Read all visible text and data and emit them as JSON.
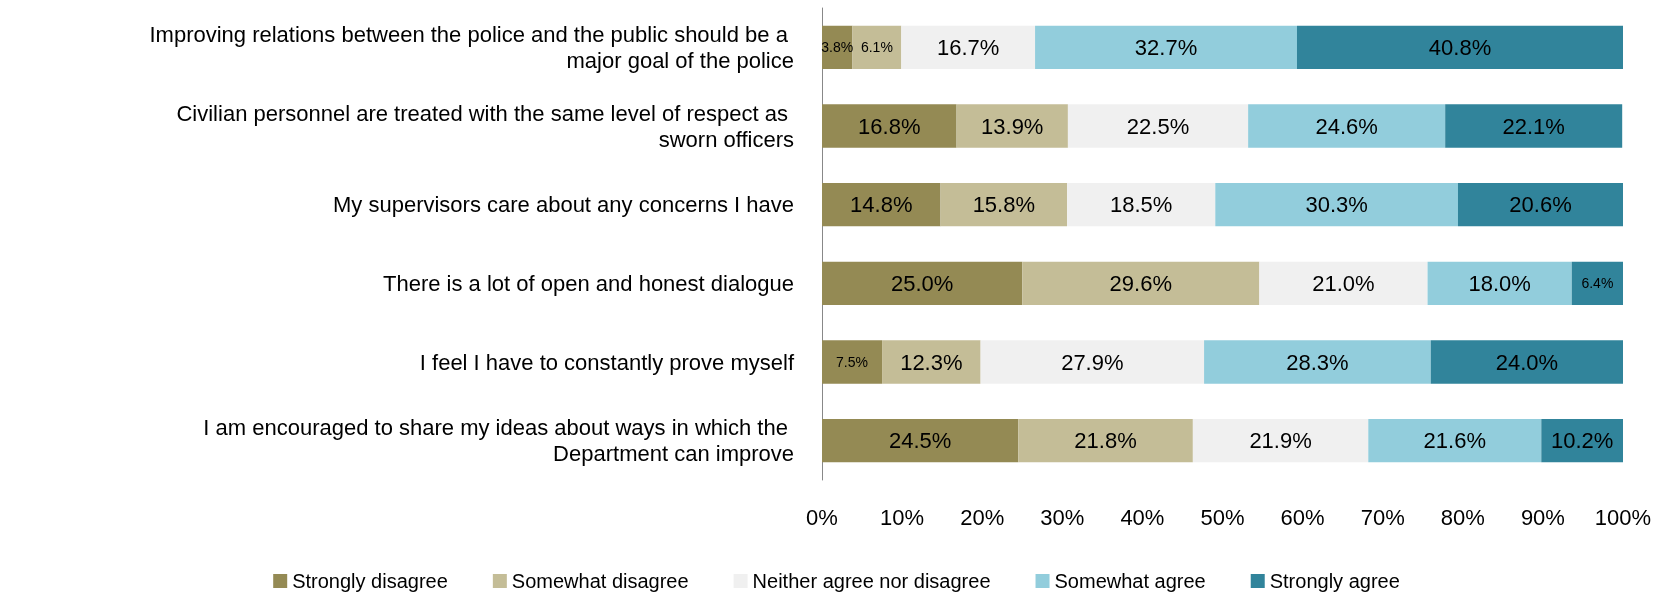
{
  "chart_data": {
    "type": "bar",
    "orientation": "horizontal",
    "stacked": true,
    "categories": [
      "Improving relations between the police and the public should be a major goal of the police",
      "Civilian personnel are treated with the same level of respect as sworn officers",
      "My supervisors care about any concerns I have",
      "There is a lot of open and honest dialogue",
      "I feel I have to constantly prove myself",
      "I am encouraged to share my ideas about ways in which the Department can improve"
    ],
    "series": [
      {
        "name": "Strongly disagree",
        "color": "#948a54",
        "values": [
          3.8,
          16.8,
          14.8,
          25.0,
          7.5,
          24.5
        ],
        "value_labels": [
          "3.8%",
          "16.8%",
          "14.8%",
          "25.0%",
          "7.5%",
          "24.5%"
        ]
      },
      {
        "name": "Somewhat disagree",
        "color": "#c4bd97",
        "values": [
          6.1,
          13.9,
          15.8,
          29.6,
          12.3,
          21.8
        ],
        "value_labels": [
          "6.1%",
          "13.9%",
          "15.8%",
          "29.6%",
          "12.3%",
          "21.8%"
        ]
      },
      {
        "name": "Neither agree nor disagree",
        "color": "#f0f0f0",
        "values": [
          16.7,
          22.5,
          18.5,
          21.0,
          27.9,
          21.9
        ],
        "value_labels": [
          "16.7%",
          "22.5%",
          "18.5%",
          "21.0%",
          "27.9%",
          "21.9%"
        ]
      },
      {
        "name": "Somewhat agree",
        "color": "#92cddc",
        "values": [
          32.7,
          24.6,
          30.3,
          18.0,
          28.3,
          21.6
        ],
        "value_labels": [
          "32.7%",
          "24.6%",
          "30.3%",
          "18.0%",
          "28.3%",
          "21.6%"
        ]
      },
      {
        "name": "Strongly agree",
        "color": "#31849b",
        "values": [
          40.8,
          22.1,
          20.6,
          6.4,
          24.0,
          10.2
        ],
        "value_labels": [
          "40.8%",
          "22.1%",
          "20.6%",
          "6.4%",
          "24.0%",
          "10.2%"
        ]
      }
    ],
    "xlim": [
      0,
      100
    ],
    "xticks": [
      {
        "value": 0,
        "label": "0%"
      },
      {
        "value": 10,
        "label": "10%"
      },
      {
        "value": 20,
        "label": "20%"
      },
      {
        "value": 30,
        "label": "30%"
      },
      {
        "value": 40,
        "label": "40%"
      },
      {
        "value": 50,
        "label": "50%"
      },
      {
        "value": 60,
        "label": "60%"
      },
      {
        "value": 70,
        "label": "70%"
      },
      {
        "value": 80,
        "label": "80%"
      },
      {
        "value": 90,
        "label": "90%"
      },
      {
        "value": 100,
        "label": "100%"
      }
    ],
    "grid": false,
    "legend": "bottom"
  }
}
